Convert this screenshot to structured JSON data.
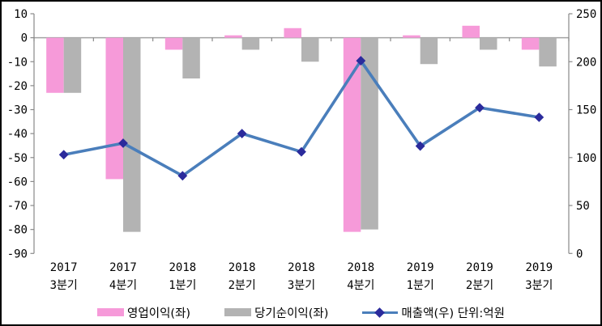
{
  "chart_data": {
    "type": "bar+line combo",
    "title": "",
    "categories": [
      "2017 3분기",
      "2017 4분기",
      "2018 1분기",
      "2018 2분기",
      "2018 3분기",
      "2018 4분기",
      "2019 1분기",
      "2019 2분기",
      "2019 3분기"
    ],
    "category_label_lines": [
      [
        "2017",
        "3분기"
      ],
      [
        "2017",
        "4분기"
      ],
      [
        "2018",
        "1분기"
      ],
      [
        "2018",
        "2분기"
      ],
      [
        "2018",
        "3분기"
      ],
      [
        "2018",
        "4분기"
      ],
      [
        "2019",
        "1분기"
      ],
      [
        "2019",
        "2분기"
      ],
      [
        "2019",
        "3분기"
      ]
    ],
    "series": [
      {
        "name": "영업이익(좌)",
        "type": "bar",
        "axis": "left",
        "color": "#F69AD9",
        "values": [
          -23,
          -59,
          -5,
          1,
          4,
          -81,
          1,
          5,
          -5
        ]
      },
      {
        "name": "당기순이익(좌)",
        "type": "bar",
        "axis": "left",
        "color": "#B3B3B3",
        "values": [
          -23,
          -81,
          -17,
          -5,
          -10,
          -80,
          -11,
          -5,
          -12
        ]
      },
      {
        "name": "매출액(우) 단위:억원",
        "type": "line",
        "axis": "right",
        "color": "#4A7EBB",
        "marker": "diamond",
        "marker_color": "#2B2B9C",
        "values": [
          103,
          115,
          81,
          125,
          106,
          201,
          112,
          152,
          142
        ]
      }
    ],
    "left_axis": {
      "min": -90,
      "max": 10,
      "step": 10,
      "tick_labels": [
        "10",
        "0",
        "-10",
        "-20",
        "-30",
        "-40",
        "-50",
        "-60",
        "-70",
        "-80",
        "-90"
      ]
    },
    "right_axis": {
      "min": 0,
      "max": 250,
      "step": 50,
      "tick_labels": [
        "250",
        "200",
        "150",
        "100",
        "50",
        "0"
      ]
    },
    "grid": "zero-line-only",
    "legend_position": "bottom"
  },
  "colors": {
    "axis": "#898989",
    "zero_line": "#A3A3A3",
    "text": "#000000",
    "background": "#FFFFFF",
    "border": "#000000"
  }
}
